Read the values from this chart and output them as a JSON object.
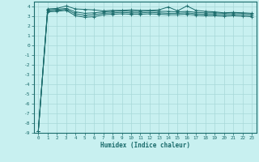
{
  "title": "",
  "xlabel": "Humidex (Indice chaleur)",
  "ylabel": "",
  "bg_color": "#c8f0f0",
  "grid_color": "#a8d8d8",
  "line_color": "#1a6b6b",
  "xlim": [
    -0.5,
    23.5
  ],
  "ylim": [
    -9,
    4.5
  ],
  "x_ticks": [
    0,
    1,
    2,
    3,
    4,
    5,
    6,
    7,
    8,
    9,
    10,
    11,
    12,
    13,
    14,
    15,
    16,
    17,
    18,
    19,
    20,
    21,
    22,
    23
  ],
  "y_ticks": [
    4,
    3,
    2,
    1,
    0,
    -1,
    -2,
    -3,
    -4,
    -5,
    -6,
    -7,
    -8,
    -9
  ],
  "series": [
    [
      -8.8,
      3.75,
      3.8,
      4.05,
      3.75,
      3.7,
      3.65,
      3.55,
      3.6,
      3.6,
      3.65,
      3.6,
      3.6,
      3.65,
      3.95,
      3.55,
      4.05,
      3.6,
      3.5,
      3.45,
      3.35,
      3.4,
      3.35,
      3.3
    ],
    [
      -8.8,
      3.65,
      3.7,
      3.8,
      3.45,
      3.3,
      3.35,
      3.45,
      3.5,
      3.55,
      3.5,
      3.5,
      3.55,
      3.5,
      3.5,
      3.45,
      3.5,
      3.4,
      3.35,
      3.35,
      3.3,
      3.35,
      3.3,
      3.25
    ],
    [
      -8.8,
      3.55,
      3.6,
      3.7,
      3.25,
      3.1,
      3.15,
      3.3,
      3.35,
      3.4,
      3.35,
      3.35,
      3.4,
      3.35,
      3.3,
      3.3,
      3.35,
      3.25,
      3.2,
      3.2,
      3.15,
      3.2,
      3.15,
      3.1
    ],
    [
      -8.8,
      3.45,
      3.5,
      3.6,
      3.05,
      2.9,
      2.95,
      3.15,
      3.2,
      3.25,
      3.2,
      3.2,
      3.25,
      3.2,
      3.15,
      3.15,
      3.2,
      3.1,
      3.05,
      3.05,
      3.0,
      3.05,
      3.0,
      2.95
    ]
  ]
}
